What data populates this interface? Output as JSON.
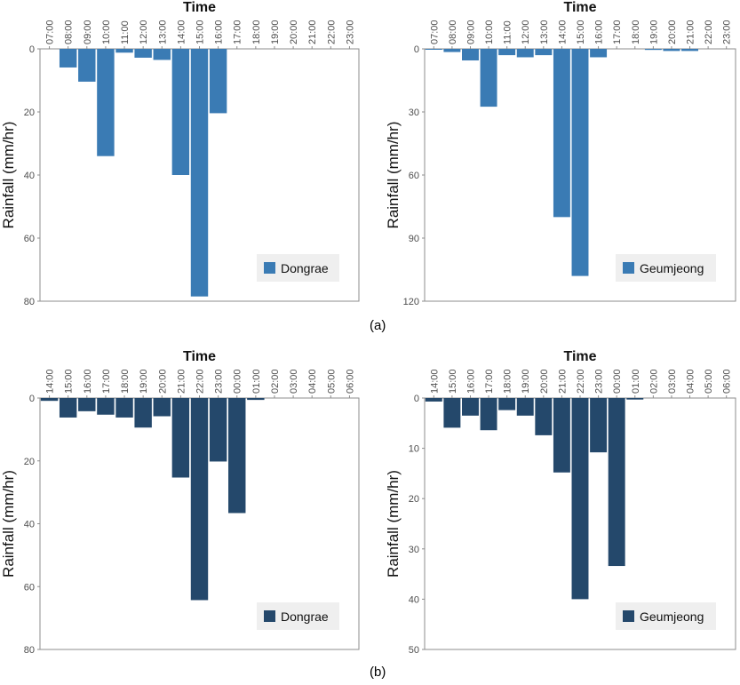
{
  "panel_labels": [
    "(a)",
    "(b)"
  ],
  "chart_data": [
    {
      "type": "bar",
      "title": "Time",
      "ylabel": "Rainfall (mm/hr)",
      "categories": [
        "07:00",
        "08:00",
        "09:00",
        "10:00",
        "11:00",
        "12:00",
        "13:00",
        "14:00",
        "15:00",
        "16:00",
        "17:00",
        "18:00",
        "19:00",
        "20:00",
        "21:00",
        "22:00",
        "23:00"
      ],
      "series": [
        {
          "name": "Dongrae",
          "values": [
            0,
            5.9,
            10.4,
            34.0,
            1.2,
            2.8,
            3.5,
            40.0,
            78.5,
            20.4,
            0,
            0,
            0,
            0,
            0,
            0,
            0
          ]
        }
      ],
      "ylim": [
        0,
        80
      ],
      "yticks": [
        0,
        20,
        40,
        60,
        80
      ],
      "y_inverted": true,
      "x_axis_position": "top",
      "color": "#3a7bb4",
      "legend_position": "bottom-right"
    },
    {
      "type": "bar",
      "title": "Time",
      "ylabel": "Rainfall (mm/hr)",
      "categories": [
        "07:00",
        "08:00",
        "09:00",
        "10:00",
        "11:00",
        "12:00",
        "13:00",
        "14:00",
        "15:00",
        "16:00",
        "17:00",
        "18:00",
        "19:00",
        "20:00",
        "21:00",
        "22:00",
        "23:00"
      ],
      "series": [
        {
          "name": "Geumjeong",
          "values": [
            0.3,
            1.5,
            5.5,
            27.5,
            3.0,
            4.0,
            3.0,
            80.0,
            108.0,
            4.0,
            0,
            0,
            0.5,
            1.0,
            1.0,
            0,
            0
          ]
        }
      ],
      "ylim": [
        0,
        120
      ],
      "yticks": [
        0,
        30,
        60,
        90,
        120
      ],
      "y_inverted": true,
      "x_axis_position": "top",
      "color": "#3a7bb4",
      "legend_position": "bottom-right"
    },
    {
      "type": "bar",
      "title": "Time",
      "ylabel": "Rainfall (mm/hr)",
      "categories": [
        "14:00",
        "15:00",
        "16:00",
        "17:00",
        "18:00",
        "19:00",
        "20:00",
        "21:00",
        "22:00",
        "23:00",
        "00:00",
        "01:00",
        "02:00",
        "03:00",
        "04:00",
        "05:00",
        "06:00"
      ],
      "series": [
        {
          "name": "Dongrae",
          "values": [
            0.9,
            6.2,
            4.2,
            5.3,
            6.2,
            9.4,
            5.8,
            25.3,
            64.3,
            20.2,
            36.6,
            0.6,
            0,
            0,
            0,
            0,
            0
          ]
        }
      ],
      "ylim": [
        0,
        80
      ],
      "yticks": [
        0,
        20,
        40,
        60,
        80
      ],
      "y_inverted": true,
      "x_axis_position": "top",
      "color": "#24486b",
      "legend_position": "bottom-right"
    },
    {
      "type": "bar",
      "title": "Time",
      "ylabel": "Rainfall (mm/hr)",
      "categories": [
        "14:00",
        "15:00",
        "16:00",
        "17:00",
        "18:00",
        "19:00",
        "20:00",
        "21:00",
        "22:00",
        "23:00",
        "00:00",
        "01:00",
        "02:00",
        "03:00",
        "04:00",
        "05:00",
        "06:00"
      ],
      "series": [
        {
          "name": "Geumjeong",
          "values": [
            0.7,
            5.9,
            3.5,
            6.4,
            2.4,
            3.5,
            7.4,
            14.8,
            40.0,
            10.8,
            33.4,
            0.3,
            0,
            0,
            0,
            0,
            0
          ]
        }
      ],
      "ylim": [
        0,
        50
      ],
      "yticks": [
        0,
        10,
        20,
        30,
        40,
        50
      ],
      "y_inverted": true,
      "x_axis_position": "top",
      "color": "#24486b",
      "legend_position": "bottom-right"
    }
  ]
}
